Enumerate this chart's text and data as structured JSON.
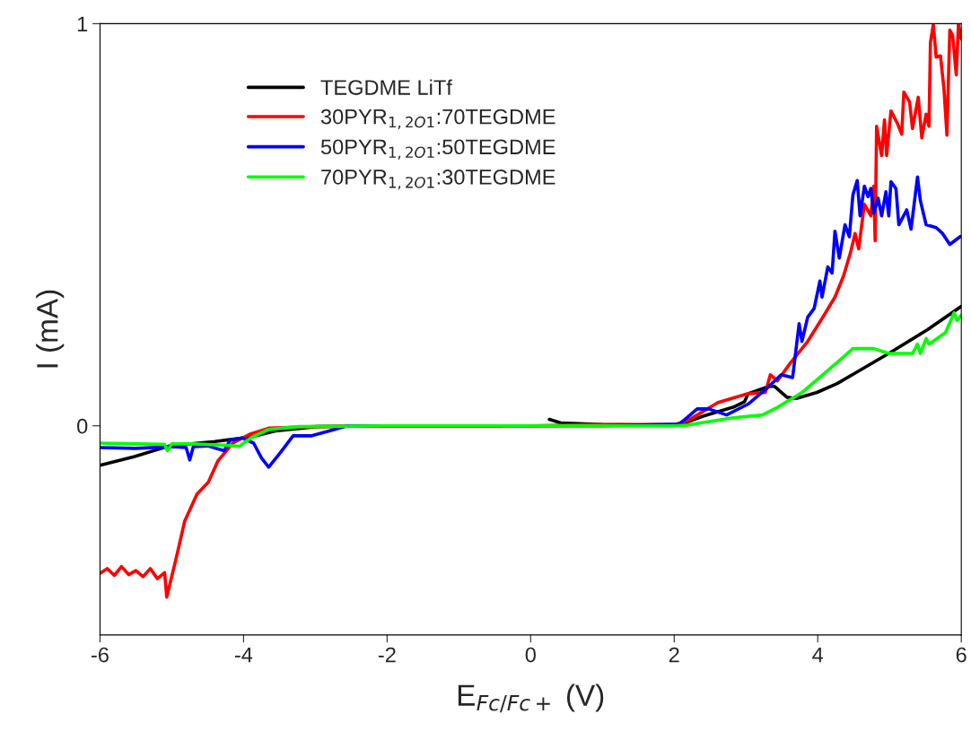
{
  "chart_data": {
    "type": "line",
    "xlabel": "E$_{Fc/Fc+}$ (V)",
    "ylabel": "I (mA)",
    "xlim": [
      -6,
      6
    ],
    "xticks": [
      -6,
      -4,
      -2,
      0,
      2,
      4,
      6
    ],
    "ylim": [
      -0.52,
      1
    ],
    "yticks": [
      0,
      1
    ],
    "grid": false,
    "legend": "top left",
    "marker": "none",
    "line_style": "solid",
    "series": [
      {
        "name": "TEGDME LiTf",
        "color": "#000000",
        "x": [
          -6,
          -5.53,
          -5.03,
          -4.4,
          -3.9,
          -3.56,
          -2.98,
          -2,
          -1,
          -0.4,
          -0.1,
          0.26,
          0.42,
          1.0,
          1.5,
          2.07,
          2.4,
          2.82,
          2.98,
          3.03,
          3.32,
          3.4,
          3.57,
          3.7,
          3.99,
          4.27,
          4.52,
          4.99,
          5.53,
          6.0
        ],
        "values": [
          -0.098,
          -0.077,
          -0.05,
          -0.039,
          -0.028,
          -0.013,
          -0.002,
          0,
          0,
          0,
          null,
          0.016,
          0.007,
          0.003,
          0.002,
          0.002,
          0.024,
          0.046,
          0.06,
          0.08,
          0.098,
          0.098,
          0.071,
          0.068,
          0.083,
          0.105,
          0.131,
          0.18,
          0.239,
          0.297
        ]
      },
      {
        "name": "30PYR$_{1,2O1}$:70TEGDME",
        "color": "#ff0000",
        "x": [
          -5.99,
          -5.9,
          -5.8,
          -5.7,
          -5.6,
          -5.5,
          -5.4,
          -5.3,
          -5.2,
          -5.1,
          -5.07,
          -4.94,
          -4.82,
          -4.65,
          -4.49,
          -4.36,
          -4.15,
          -3.9,
          -3.65,
          -3,
          -2,
          0,
          1,
          2.0,
          2.19,
          2.61,
          3.03,
          3.27,
          3.34,
          3.44,
          3.61,
          3.86,
          4.07,
          4.24,
          4.36,
          4.46,
          4.52,
          4.57,
          4.65,
          4.74,
          4.78,
          4.8,
          4.82,
          4.89,
          4.93,
          4.96,
          5.02,
          5.11,
          5.17,
          5.2,
          5.28,
          5.32,
          5.4,
          5.45,
          5.51,
          5.55,
          5.57,
          5.61,
          5.65,
          5.71,
          5.76,
          5.8,
          5.84,
          5.88,
          5.93,
          5.96,
          6.0
        ],
        "values": [
          -0.366,
          -0.355,
          -0.372,
          -0.35,
          -0.37,
          -0.36,
          -0.375,
          -0.355,
          -0.38,
          -0.365,
          -0.426,
          -0.33,
          -0.237,
          -0.17,
          -0.14,
          -0.088,
          -0.043,
          -0.02,
          -0.006,
          -0.002,
          0,
          0,
          0.003,
          0.003,
          0.013,
          0.058,
          0.08,
          0.083,
          0.127,
          0.112,
          0.154,
          0.21,
          0.27,
          0.32,
          0.373,
          0.433,
          0.478,
          0.44,
          0.551,
          0.522,
          0.596,
          0.46,
          0.745,
          0.672,
          0.761,
          0.672,
          0.783,
          0.752,
          0.725,
          0.83,
          0.805,
          0.739,
          0.817,
          0.716,
          0.775,
          0.745,
          0.953,
          0.998,
          0.917,
          0.92,
          0.835,
          0.723,
          0.984,
          0.97,
          0.873,
          0.998,
          0.962
        ]
      },
      {
        "name": "50PYR$_{1,2O1}$:50TEGDME",
        "color": "#0000ff",
        "x": [
          -6,
          -5.5,
          -5.0,
          -4.8,
          -4.75,
          -4.7,
          -4.5,
          -4.27,
          -4.19,
          -4.02,
          -3.86,
          -3.75,
          -3.65,
          -3.48,
          -3.31,
          -3.06,
          -2.73,
          -2.56,
          -1,
          0,
          1,
          2.07,
          2.32,
          2.48,
          2.73,
          3.03,
          3.32,
          3.49,
          3.65,
          3.74,
          3.78,
          3.86,
          3.95,
          4.03,
          4.06,
          4.14,
          4.2,
          4.24,
          4.3,
          4.38,
          4.44,
          4.49,
          4.55,
          4.59,
          4.65,
          4.7,
          4.74,
          4.78,
          4.84,
          4.89,
          4.95,
          4.99,
          5.02,
          5.09,
          5.13,
          5.24,
          5.3,
          5.39,
          5.43,
          5.51,
          5.65,
          5.74,
          5.84,
          5.99
        ],
        "values": [
          -0.054,
          -0.056,
          -0.052,
          -0.054,
          -0.085,
          -0.052,
          -0.05,
          -0.062,
          -0.036,
          -0.03,
          -0.043,
          -0.08,
          -0.103,
          -0.065,
          -0.025,
          -0.025,
          -0.009,
          0,
          0,
          0,
          0,
          0.004,
          0.042,
          0.042,
          0.027,
          0.054,
          0.098,
          0.127,
          0.12,
          0.254,
          0.21,
          0.27,
          0.292,
          0.36,
          0.32,
          0.395,
          0.38,
          0.484,
          0.417,
          0.5,
          0.47,
          0.574,
          0.61,
          0.522,
          0.596,
          0.57,
          0.59,
          0.529,
          0.566,
          0.522,
          0.582,
          0.522,
          0.607,
          0.59,
          0.5,
          0.537,
          0.489,
          0.619,
          0.56,
          0.5,
          0.493,
          0.478,
          0.451,
          0.471
        ]
      },
      {
        "name": "70PYR$_{1,2O1}$:30TEGDME",
        "color": "#00ff00",
        "x": [
          -6,
          -5.5,
          -5.1,
          -5.06,
          -5.0,
          -4.7,
          -4.27,
          -4.06,
          -3.9,
          -3.65,
          -3.23,
          -2,
          0,
          2.0,
          2.19,
          2.82,
          3.23,
          3.44,
          3.78,
          4.07,
          4.32,
          4.49,
          4.78,
          4.99,
          5.32,
          5.39,
          5.43,
          5.51,
          5.55,
          5.78,
          5.9,
          5.94,
          6.0
        ],
        "values": [
          -0.043,
          -0.045,
          -0.046,
          -0.062,
          -0.045,
          -0.045,
          -0.048,
          -0.051,
          -0.03,
          -0.009,
          -0.002,
          0,
          0,
          0,
          0.002,
          0.02,
          0.027,
          0.046,
          0.083,
          0.127,
          0.165,
          0.192,
          0.192,
          0.18,
          0.18,
          0.203,
          0.18,
          0.217,
          0.203,
          0.232,
          0.281,
          0.262,
          0.275
        ]
      }
    ]
  }
}
